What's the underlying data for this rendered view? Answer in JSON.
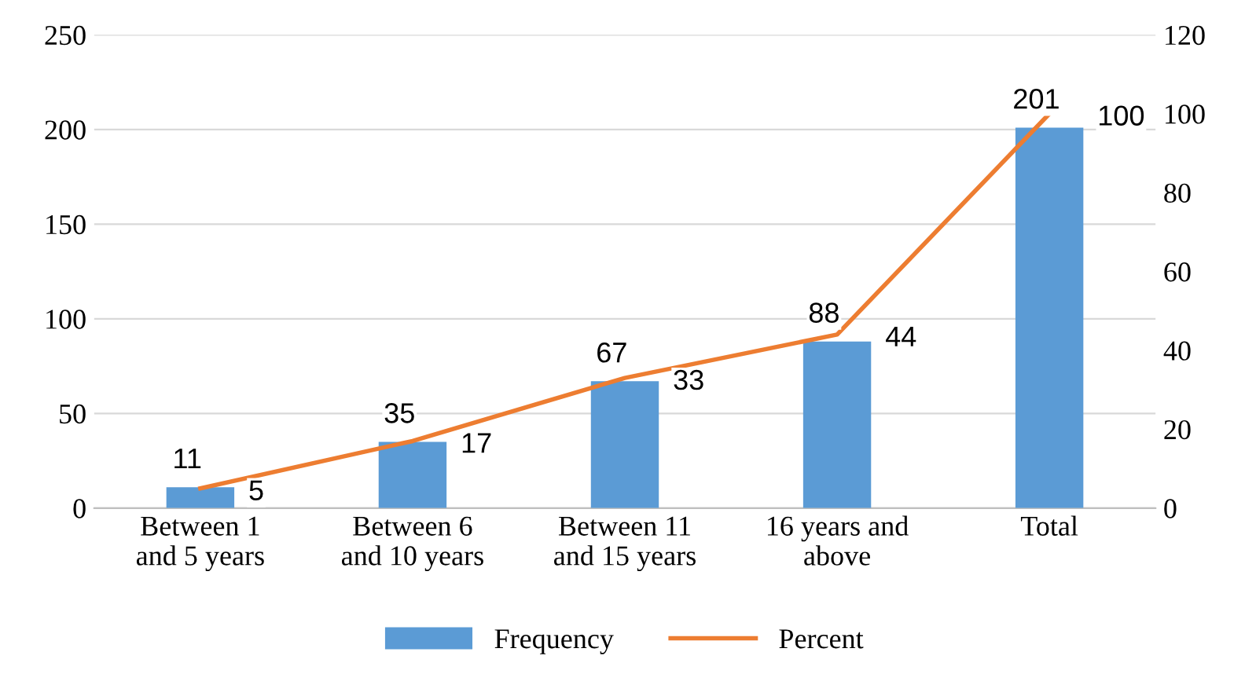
{
  "chart_data": {
    "type": "bar",
    "categories": [
      "Between 1\nand 5 years",
      "Between 6\nand 10 years",
      "Between 11\nand 15 years",
      "16 years and\nabove",
      "Total"
    ],
    "series": [
      {
        "name": "Frequency",
        "type": "bar",
        "color": "#5b9bd5",
        "values": [
          11,
          35,
          67,
          88,
          201
        ]
      },
      {
        "name": "Percent",
        "type": "line",
        "axis": "y2",
        "color": "#ed7d31",
        "values": [
          5,
          17,
          33,
          44,
          100
        ]
      }
    ],
    "ylim": [
      0,
      250
    ],
    "yticks": [
      0,
      50,
      100,
      150,
      200,
      250
    ],
    "y2lim": [
      0,
      120
    ],
    "y2ticks": [
      0,
      20,
      40,
      60,
      80,
      100,
      120
    ],
    "data_labels": true,
    "grid": "y",
    "legend": "bottom",
    "marker": "none"
  }
}
